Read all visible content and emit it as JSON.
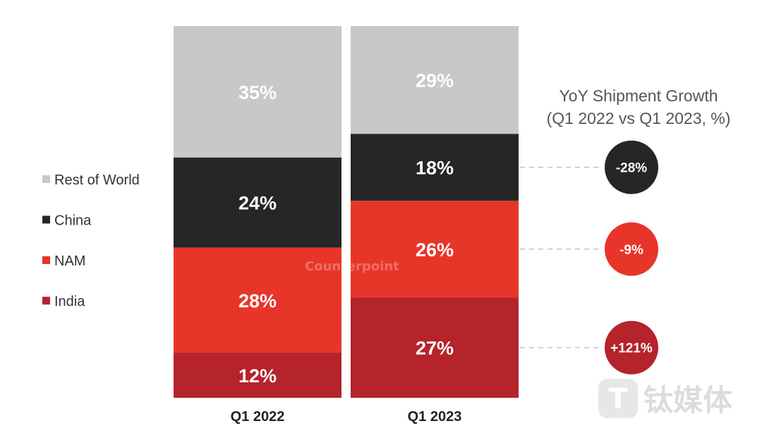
{
  "chart_data": {
    "type": "bar",
    "stacked": true,
    "normalized_percent": true,
    "categories": [
      "Q1 2022",
      "Q1 2023"
    ],
    "series": [
      {
        "name": "India",
        "color": "#b5232b",
        "values": [
          12,
          27
        ],
        "labels": [
          "12%",
          "27%"
        ]
      },
      {
        "name": "NAM",
        "color": "#e8352a",
        "values": [
          28,
          26
        ],
        "labels": [
          "28%",
          "26%"
        ]
      },
      {
        "name": "China",
        "color": "#262626",
        "values": [
          24,
          18
        ],
        "labels": [
          "24%",
          "18%"
        ]
      },
      {
        "name": "Rest of World",
        "color": "#c8c8c8",
        "values": [
          35,
          29
        ],
        "labels": [
          "35%",
          "29%"
        ]
      }
    ],
    "legend": {
      "placement": "left",
      "order": [
        "Rest of World",
        "China",
        "NAM",
        "India"
      ]
    },
    "yoy_growth": {
      "title_line1": "YoY Shipment Growth",
      "title_line2": "(Q1 2022 vs Q1 2023, %)",
      "items": [
        {
          "series": "China",
          "value": -28,
          "label": "-28%",
          "color": "#262626"
        },
        {
          "series": "NAM",
          "value": -9,
          "label": "-9%",
          "color": "#e8352a"
        },
        {
          "series": "India",
          "value": 121,
          "label": "+121%",
          "color": "#b5232b"
        }
      ]
    },
    "grid": false
  },
  "watermarks": {
    "center_logo": "Counterpoint",
    "corner_logo": "钛媒体"
  }
}
